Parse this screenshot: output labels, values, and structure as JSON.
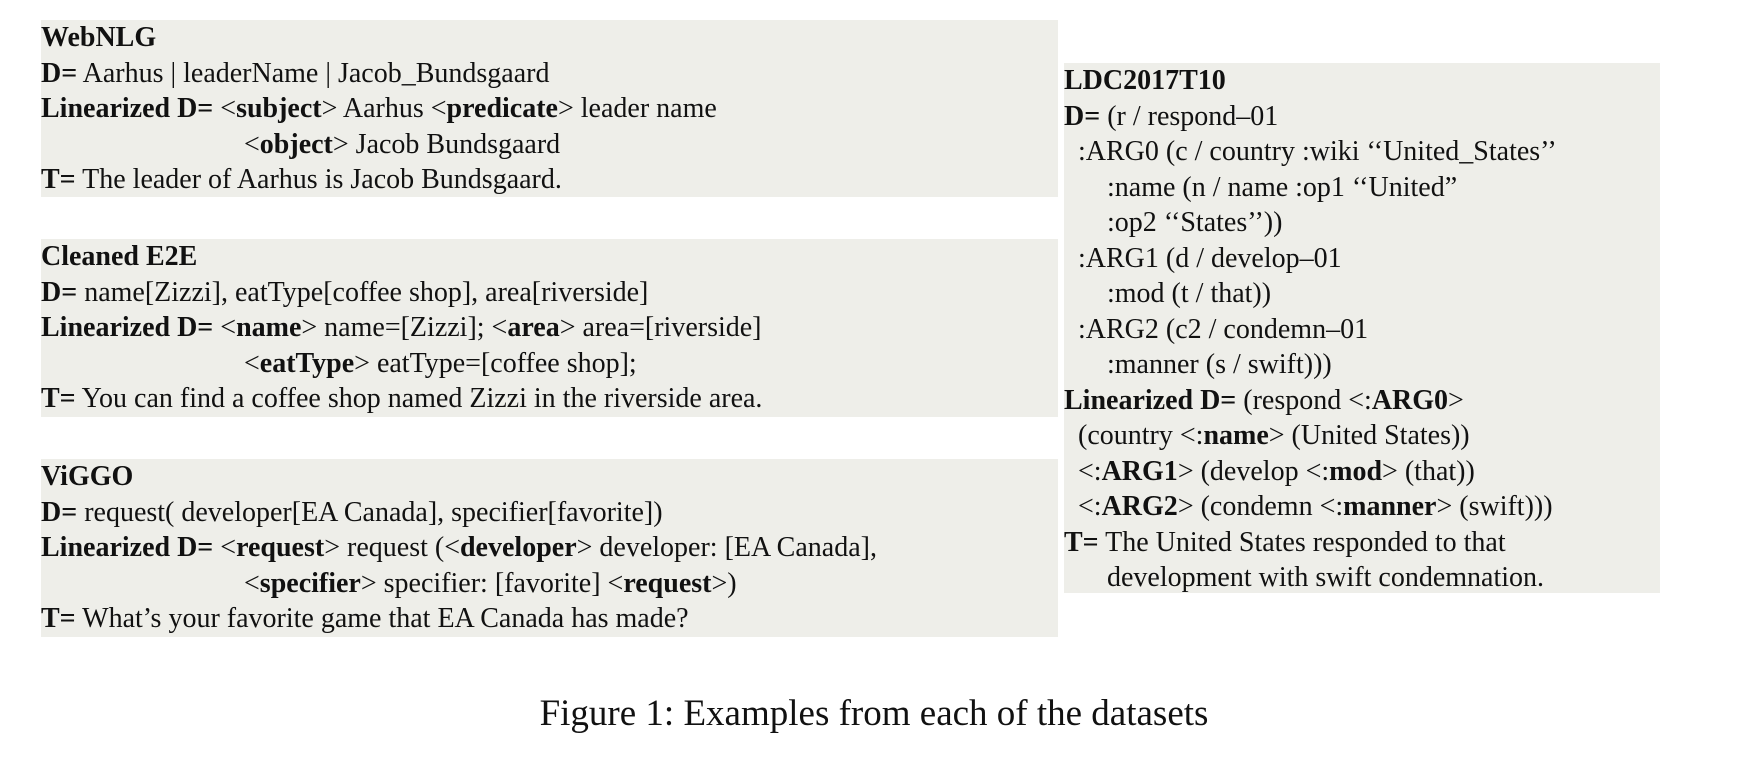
{
  "webnlg": {
    "title": "WebNLG",
    "d_label": "D=",
    "d_value": " Aarhus | leaderName | Jacob_Bundsgaard",
    "lin_label": "Linearized D=",
    "lin_l1": [
      " <",
      "subject",
      "> Aarhus <",
      "predicate",
      "> leader name"
    ],
    "lin_l2": [
      "<",
      "object",
      "> Jacob Bundsgaard"
    ],
    "t_label": "T=",
    "t_value": " The leader of Aarhus is Jacob Bundsgaard."
  },
  "e2e": {
    "title": "Cleaned E2E",
    "d_label": "D=",
    "d_value": " name[Zizzi], eatType[coffee shop], area[riverside]",
    "lin_label": "Linearized D=",
    "lin_l1": [
      " <",
      "name",
      "> name=[Zizzi]; <",
      "area",
      "> area=[riverside]"
    ],
    "lin_l2": [
      "<",
      "eatType",
      "> eatType=[coffee shop];"
    ],
    "t_label": "T=",
    "t_value": " You can find a coffee shop named Zizzi in the riverside area."
  },
  "viggo": {
    "title": "ViGGO",
    "d_label": "D=",
    "d_value": " request( developer[EA Canada], specifier[favorite])",
    "lin_label": "Linearized D=",
    "lin_l1": [
      " <",
      "request",
      "> request (<",
      "developer",
      "> developer: [EA Canada],"
    ],
    "lin_l2": [
      "<",
      "specifier",
      "> specifier: [favorite] <",
      "request",
      ">)"
    ],
    "t_label": "T=",
    "t_value": " What’s your favorite game that EA Canada has made?"
  },
  "ldc": {
    "title": "LDC2017T10",
    "d_label": "D=",
    "d_value": " (r / respond–01",
    "d_lines": [
      {
        "indent": 1,
        "text": ":ARG0 (c / country :wiki ‘‘United_States’’"
      },
      {
        "indent": 2,
        "text": ":name (n / name :op1 ‘‘United”"
      },
      {
        "indent": 2,
        "text": ":op2 ‘‘States’’))"
      },
      {
        "indent": 1,
        "text": ":ARG1 (d / develop–01"
      },
      {
        "indent": 2,
        "text": ":mod (t / that))"
      },
      {
        "indent": 1,
        "text": ":ARG2 (c2 / condemn–01"
      },
      {
        "indent": 2,
        "text": ":manner (s / swift)))"
      }
    ],
    "lin_label": "Linearized D=",
    "lin_value": " (respond <:",
    "lin_bold": "ARG0",
    "lin_tail": ">",
    "lin_lines": [
      [
        "(country <:",
        "name",
        "> (United States))"
      ],
      [
        "<:",
        "ARG1",
        "> (develop <:",
        "mod",
        "> (that))"
      ],
      [
        "<:",
        "ARG2",
        "> (condemn <:",
        "manner",
        "> (swift)))"
      ]
    ],
    "t_label": "T=",
    "t_value": " The United States responded to that",
    "t_value2": "development with swift condemnation."
  },
  "caption": "Figure 1: Examples from each of the datasets"
}
